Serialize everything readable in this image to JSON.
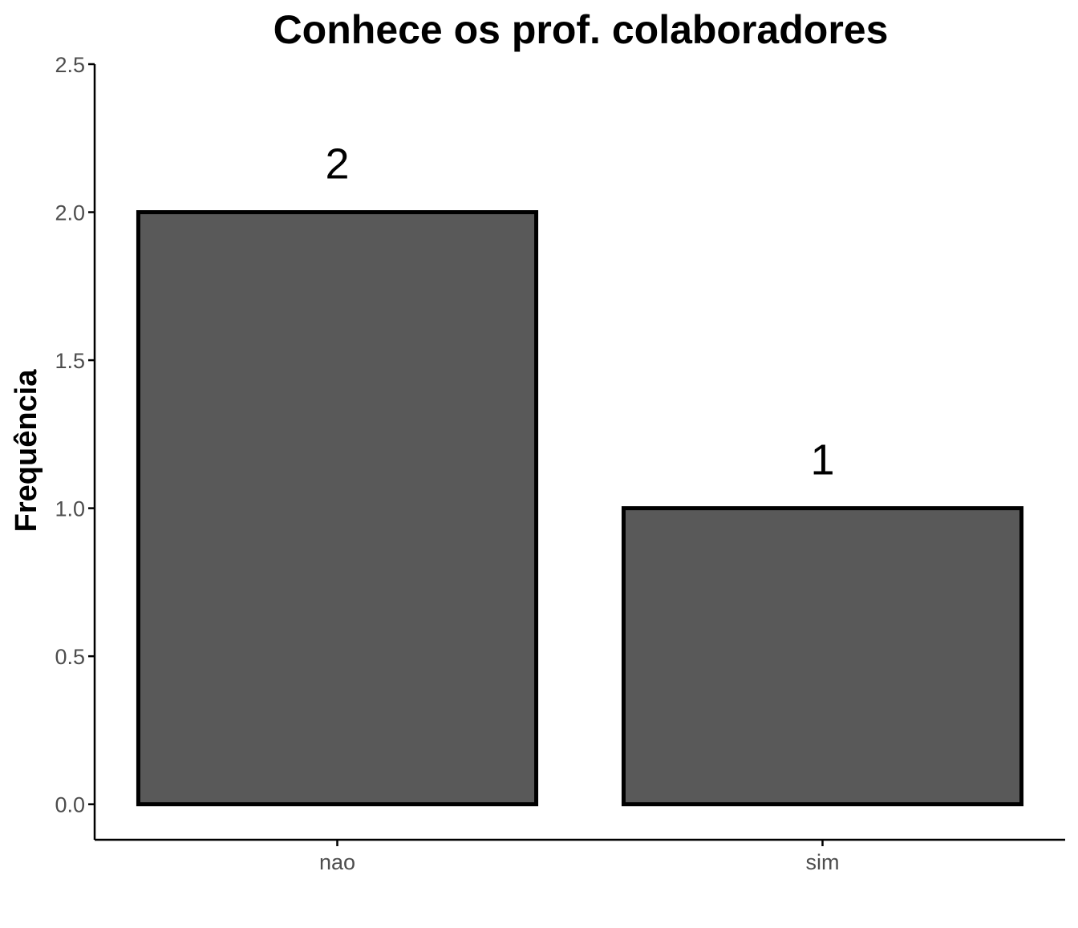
{
  "chart_data": {
    "type": "bar",
    "title": "Conhece os prof. colaboradores",
    "xlabel": "",
    "ylabel": "Frequência",
    "categories": [
      "nao",
      "sim"
    ],
    "values": [
      2,
      1
    ],
    "data_labels": [
      "2",
      "1"
    ],
    "ylim": [
      -0.12,
      2.5
    ],
    "yticks": [
      0.0,
      0.5,
      1.0,
      1.5,
      2.0,
      2.5
    ],
    "ytick_labels": [
      "0.0",
      "0.5",
      "1.0",
      "1.5",
      "2.0",
      "2.5"
    ],
    "grid": false,
    "legend": "none",
    "colors": {
      "bar_fill": "#595959",
      "bar_stroke": "#000000",
      "axis": "#000000",
      "tick_text": "#4d4d4d"
    }
  }
}
